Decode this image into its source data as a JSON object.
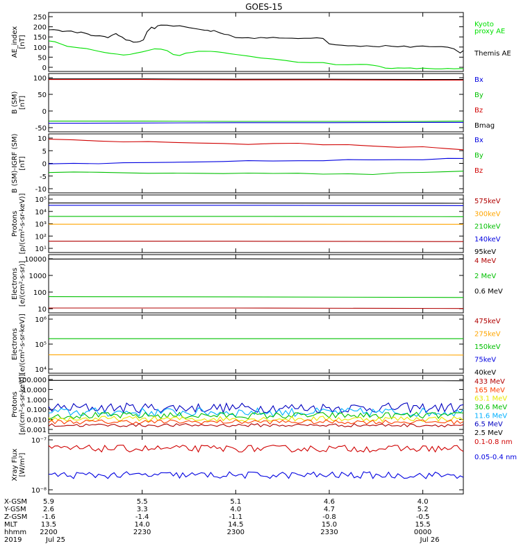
{
  "title": "GOES-15",
  "chart_data": [
    {
      "type": "line",
      "panel": "ae",
      "ylabel": [
        "AE_index",
        "[nT]"
      ],
      "yticks": [
        "250",
        "200",
        "150",
        "100",
        "50",
        "0"
      ],
      "ylim": [
        0,
        260
      ],
      "legend": [
        {
          "text": "Kyoto",
          "color": "#00e000"
        },
        {
          "text": "proxy AE",
          "color": "#00e000"
        },
        {
          "text": "Themis AE",
          "color": "#000000"
        }
      ],
      "series": [
        {
          "name": "Themis AE",
          "color": "#000000",
          "x": [
            0,
            8,
            16,
            22,
            30,
            36,
            42,
            46,
            52,
            58,
            64,
            68,
            75,
            82,
            90,
            95,
            100,
            104,
            108,
            112,
            118,
            124,
            130,
            136,
            142,
            146,
            152,
            158,
            165,
            170,
            175,
            180,
            190,
            200,
            210,
            225,
            240,
            250,
            255,
            260,
            265,
            270,
            276,
            282,
            288,
            300,
            310,
            320,
            330,
            340,
            350,
            360,
            370,
            380,
            390,
            400,
            410,
            420,
            430,
            440,
            450,
            460,
            470,
            480,
            490,
            500,
            510,
            520,
            530,
            540,
            550,
            560,
            570,
            580,
            590,
            600,
            610,
            620,
            630,
            640,
            650,
            655,
            660,
            665
          ],
          "y": [
            185,
            183,
            180,
            178,
            180,
            180,
            172,
            170,
            172,
            168,
            165,
            160,
            158,
            156,
            152,
            150,
            158,
            165,
            168,
            160,
            150,
            140,
            135,
            130,
            128,
            130,
            140,
            175,
            195,
            190,
            200,
            205,
            202,
            198,
            200,
            195,
            185,
            180,
            182,
            178,
            180,
            175,
            170,
            165,
            160,
            150,
            148,
            148,
            145,
            150,
            148,
            150,
            148,
            146,
            148,
            145,
            148,
            146,
            150,
            145,
            120,
            118,
            115,
            113,
            115,
            112,
            113,
            112,
            110,
            115,
            112,
            110,
            112,
            108,
            110,
            112,
            110,
            110,
            108,
            108,
            100,
            90,
            80,
            90
          ]
        },
        {
          "name": "Kyoto proxy AE",
          "color": "#00e000",
          "x": [
            0,
            10,
            20,
            30,
            40,
            50,
            60,
            70,
            80,
            90,
            100,
            110,
            120,
            130,
            140,
            150,
            160,
            170,
            180,
            190,
            200,
            210,
            220,
            230,
            240,
            250,
            260,
            270,
            280,
            290,
            300,
            320,
            340,
            360,
            380,
            400,
            420,
            440,
            460,
            480,
            500,
            510,
            520,
            530,
            540,
            550,
            560,
            570,
            580,
            590,
            600,
            610,
            620,
            630,
            640,
            650,
            660,
            665
          ],
          "y": [
            135,
            130,
            120,
            112,
            108,
            104,
            100,
            95,
            90,
            84,
            80,
            76,
            74,
            75,
            80,
            88,
            95,
            100,
            98,
            92,
            74,
            72,
            80,
            86,
            88,
            88,
            87,
            86,
            84,
            80,
            74,
            66,
            60,
            55,
            50,
            42,
            40,
            38,
            32,
            30,
            30,
            30,
            28,
            22,
            16,
            15,
            14,
            14,
            14,
            13,
            13,
            13,
            12,
            12,
            12,
            11,
            11,
            12
          ]
        }
      ]
    },
    {
      "type": "line",
      "panel": "b",
      "ylabel": [
        "B (SM)",
        "[nT]"
      ],
      "yticks": [
        "100",
        "50",
        "0",
        "-50"
      ],
      "ylim": [
        -55,
        130
      ],
      "legend": [
        {
          "text": "Bx",
          "color": "#0000e0"
        },
        {
          "text": "By",
          "color": "#00c000"
        },
        {
          "text": "Bz",
          "color": "#d00000"
        },
        {
          "text": "Bmag",
          "color": "#000000"
        }
      ],
      "series": [
        {
          "name": "Bmag",
          "color": "#000000",
          "x": [
            0,
            150,
            300,
            450,
            600,
            665
          ],
          "y": [
            113,
            113,
            112,
            112,
            111,
            111
          ]
        },
        {
          "name": "Bz",
          "color": "#d00000",
          "x": [
            0,
            150,
            300,
            450,
            600,
            665
          ],
          "y": [
            111,
            111,
            110,
            110,
            109,
            109
          ]
        },
        {
          "name": "By",
          "color": "#00c000",
          "x": [
            0,
            150,
            300,
            450,
            600,
            665
          ],
          "y": [
            -21,
            -21,
            -22,
            -22,
            -22,
            -21
          ]
        },
        {
          "name": "Bx",
          "color": "#0000e0",
          "x": [
            0,
            150,
            300,
            450,
            600,
            665
          ],
          "y": [
            -28,
            -27,
            -26,
            -26,
            -25,
            -25
          ]
        }
      ]
    },
    {
      "type": "line",
      "panel": "dbb",
      "ylabel": [
        "B (SM)-IGRF (SM)",
        "[nT]"
      ],
      "yticks": [
        "10",
        "5",
        "0",
        "-5",
        "-10"
      ],
      "ylim": [
        -15,
        12
      ],
      "legend": [
        {
          "text": "Bx",
          "color": "#0000e0"
        },
        {
          "text": "By",
          "color": "#00c000"
        },
        {
          "text": "Bz",
          "color": "#d00000"
        }
      ],
      "series": [
        {
          "name": "Bz",
          "color": "#d00000",
          "x": [
            0,
            40,
            80,
            120,
            160,
            200,
            240,
            280,
            320,
            360,
            400,
            440,
            480,
            520,
            560,
            600,
            640,
            665
          ],
          "y": [
            9.5,
            9,
            8.5,
            8.5,
            8.3,
            8,
            7.8,
            7.5,
            7.2,
            7.5,
            7.5,
            7.3,
            7.3,
            6.5,
            6,
            6,
            5.5,
            4.5
          ]
        },
        {
          "name": "Bx",
          "color": "#0000e0",
          "x": [
            0,
            40,
            80,
            120,
            160,
            200,
            240,
            280,
            320,
            360,
            400,
            440,
            480,
            520,
            560,
            600,
            640,
            665
          ],
          "y": [
            -1.8,
            -1.5,
            -1.4,
            -1,
            -1,
            -0.8,
            -0.6,
            -0.5,
            -0.4,
            -0.3,
            -0.3,
            -0.2,
            0,
            0.2,
            0.3,
            0.4,
            0.5,
            0.5
          ]
        },
        {
          "name": "By",
          "color": "#00c000",
          "x": [
            0,
            40,
            80,
            120,
            160,
            200,
            240,
            280,
            320,
            360,
            400,
            440,
            480,
            520,
            560,
            600,
            640,
            665
          ],
          "y": [
            -5.4,
            -5.6,
            -5.8,
            -5.9,
            -6,
            -6,
            -6.1,
            -6,
            -6,
            -6.2,
            -6.2,
            -6.3,
            -6.4,
            -6.3,
            -6,
            -5.8,
            -5.5,
            -5
          ]
        }
      ]
    },
    {
      "type": "line",
      "panel": "protons_low",
      "scale": "log",
      "ylabel": [
        "Protons",
        "[p/(cm²-s-sr-keV)]"
      ],
      "yticks": [
        "10⁵",
        "10⁴",
        "10³",
        "10²",
        "10¹"
      ],
      "ylim": [
        5,
        100000
      ],
      "legend": [
        {
          "text": "575keV",
          "color": "#b00000"
        },
        {
          "text": "300keV",
          "color": "#ffa500"
        },
        {
          "text": "210keV",
          "color": "#00c000"
        },
        {
          "text": "140keV",
          "color": "#0000e0"
        },
        {
          "text": "95keV",
          "color": "#000000"
        }
      ],
      "series": [
        {
          "name": "95keV",
          "color": "#000000",
          "x": [
            0,
            300,
            665
          ],
          "y": [
            25000,
            25000,
            24000
          ]
        },
        {
          "name": "140keV",
          "color": "#0000e0",
          "x": [
            0,
            300,
            665
          ],
          "y": [
            17000,
            17000,
            16000
          ]
        },
        {
          "name": "210keV",
          "color": "#00c000",
          "x": [
            0,
            300,
            665
          ],
          "y": [
            2500,
            2500,
            2400
          ]
        },
        {
          "name": "300keV",
          "color": "#ffa500",
          "x": [
            0,
            300,
            665
          ],
          "y": [
            650,
            650,
            640
          ]
        },
        {
          "name": "575keV",
          "color": "#b00000",
          "x": [
            0,
            300,
            665
          ],
          "y": [
            35,
            35,
            33
          ]
        }
      ]
    },
    {
      "type": "line",
      "panel": "electrons_high",
      "scale": "log",
      "ylabel": [
        "Electrons",
        "[e/(cm²-s-sr)]"
      ],
      "yticks": [
        "10000",
        "1000",
        "100",
        "10"
      ],
      "ylim": [
        10,
        12000
      ],
      "legend": [
        {
          "text": "4 MeV",
          "color": "#b00000"
        },
        {
          "text": "2 MeV",
          "color": "#00c000"
        },
        {
          "text": "0.6 MeV",
          "color": "#000000"
        }
      ],
      "series": [
        {
          "name": "0.6 MeV",
          "color": "#000000",
          "x": [
            0,
            300,
            665
          ],
          "y": [
            7000,
            7200,
            7000
          ]
        },
        {
          "name": "2 MeV",
          "color": "#00c000",
          "x": [
            0,
            300,
            665
          ],
          "y": [
            72,
            70,
            65
          ]
        },
        {
          "name": "4 MeV",
          "color": "#b00000",
          "x": [
            0,
            300,
            665
          ],
          "y": [
            18,
            18,
            17
          ]
        }
      ]
    },
    {
      "type": "line",
      "panel": "electrons_low",
      "scale": "log",
      "ylabel": [
        "Electrons",
        "[e/(cm²-s-sr-keV)]"
      ],
      "yticks": [
        "10⁶",
        "10⁵",
        "10⁴"
      ],
      "ylim": [
        8000,
        1000000
      ],
      "legend": [
        {
          "text": "475keV",
          "color": "#b00000"
        },
        {
          "text": "275keV",
          "color": "#ffa500"
        },
        {
          "text": "150keV",
          "color": "#00c000"
        },
        {
          "text": "75keV",
          "color": "#0000e0"
        },
        {
          "text": "40keV",
          "color": "#000000"
        }
      ],
      "series": [
        {
          "name": "150keV",
          "color": "#00c000",
          "x": [
            0,
            300,
            665
          ],
          "y": [
            140000,
            140000,
            140000
          ]
        },
        {
          "name": "275keV",
          "color": "#ffa500",
          "x": [
            0,
            300,
            665
          ],
          "y": [
            37000,
            37000,
            36000
          ]
        }
      ]
    },
    {
      "type": "line",
      "panel": "protons_high",
      "scale": "log",
      "ylabel": [
        "Protons",
        "[p/(cm²-s-sr-keV)]"
      ],
      "yticks": [
        "100.000",
        "10.000",
        "1.000",
        "0.100",
        "0.010",
        "0.001"
      ],
      "ylim": [
        0.0007,
        130
      ],
      "legend": [
        {
          "text": "433 MeV",
          "color": "#b00000"
        },
        {
          "text": "165 MeV",
          "color": "#ff4000"
        },
        {
          "text": "63.1 MeV",
          "color": "#e8e800"
        },
        {
          "text": "30.6 MeV",
          "color": "#00c000"
        },
        {
          "text": "11.6 MeV",
          "color": "#00b0ff"
        },
        {
          "text": "6.5 MeV",
          "color": "#0000c0"
        },
        {
          "text": "2.5 MeV",
          "color": "#000000"
        }
      ],
      "series": [
        {
          "name": "2.5 MeV",
          "color": "#000000",
          "x": [
            0,
            300,
            665
          ],
          "y": [
            45,
            45,
            42
          ]
        },
        {
          "name": "6.5 MeV",
          "color": "#0000c0",
          "x": [
            0,
            665
          ],
          "y": [
            0.15,
            0.15
          ],
          "noise": 0.45
        },
        {
          "name": "11.6 MeV",
          "color": "#00b0ff",
          "x": [
            0,
            665
          ],
          "y": [
            0.06,
            0.06
          ],
          "noise": 0.4
        },
        {
          "name": "30.6 MeV",
          "color": "#00c000",
          "x": [
            0,
            665
          ],
          "y": [
            0.03,
            0.03
          ],
          "noise": 0.3
        },
        {
          "name": "63.1 MeV",
          "color": "#e8e800",
          "x": [
            0,
            665
          ],
          "y": [
            0.015,
            0.015
          ],
          "noise": 0.25
        },
        {
          "name": "165 MeV",
          "color": "#ff4000",
          "x": [
            0,
            665
          ],
          "y": [
            0.008,
            0.008
          ],
          "noise": 0.2
        },
        {
          "name": "433 MeV",
          "color": "#b00000",
          "x": [
            0,
            665
          ],
          "y": [
            0.004,
            0.004
          ],
          "noise": 0.15
        }
      ]
    },
    {
      "type": "line",
      "panel": "xray",
      "scale": "log",
      "ylabel": [
        "Xray Flux",
        "[W/m²]"
      ],
      "yticks": [
        "10⁻⁷",
        "10⁻⁸"
      ],
      "ylim": [
        1e-08,
        1e-07
      ],
      "legend": [
        {
          "text": "0.1-0.8 nm",
          "color": "#d00000"
        },
        {
          "text": "0.05-0.4 nm",
          "color": "#0000e0"
        }
      ],
      "series": [
        {
          "name": "0.1-0.8 nm",
          "color": "#d00000",
          "x": [
            0,
            300,
            665
          ],
          "y": [
            6e-08,
            6e-08,
            6e-08
          ],
          "noise": 0.06
        },
        {
          "name": "0.05-0.4 nm",
          "color": "#0000e0",
          "x": [
            0,
            300,
            665
          ],
          "y": [
            2.1e-08,
            2.1e-08,
            2.1e-08
          ],
          "noise": 0.06
        }
      ]
    }
  ],
  "x_axis": {
    "row_labels": [
      "X-GSM",
      "Y-GSM",
      "Z-GSM",
      "MLT",
      "hhmm",
      "2019"
    ],
    "columns": [
      {
        "x": 0,
        "vals": [
          "5.9",
          "2.6",
          "-1.6",
          "13.5",
          "2200",
          "Jul 25"
        ]
      },
      {
        "x": 150,
        "vals": [
          "5.5",
          "3.3",
          "-1.4",
          "14.0",
          "2230",
          ""
        ]
      },
      {
        "x": 300,
        "vals": [
          "5.1",
          "4.0",
          "-1.1",
          "14.5",
          "2300",
          ""
        ]
      },
      {
        "x": 450,
        "vals": [
          "4.6",
          "4.7",
          "-0.8",
          "15.0",
          "2330",
          ""
        ]
      },
      {
        "x": 600,
        "vals": [
          "4.0",
          "5.2",
          "-0.5",
          "15.5",
          "0000",
          "Jul 26"
        ]
      }
    ]
  }
}
